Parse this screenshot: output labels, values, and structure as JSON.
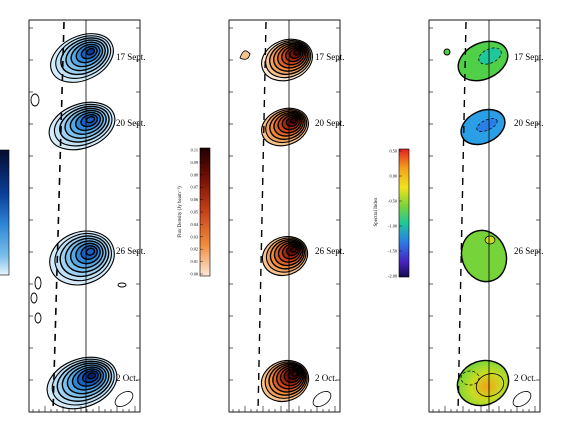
{
  "panels": [
    {
      "id": "blue",
      "colorbar": {
        "title": "",
        "ticks": []
      },
      "epochs": [
        "17 Sept.",
        "20 Sept.",
        "26 Sept.",
        "2 Oct."
      ]
    },
    {
      "id": "flux",
      "colorbar": {
        "title": "Flux Density (Jy beam⁻¹)",
        "ticks": [
          "0.11",
          "0.09",
          "0.08",
          "0.07",
          "0.06",
          "0.05",
          "0.04",
          "0.03",
          "0.02",
          "0.01",
          "0.00"
        ]
      },
      "epochs": [
        "17 Sept.",
        "20 Sept.",
        "26 Sept.",
        "2 Oct."
      ]
    },
    {
      "id": "spectral",
      "colorbar": {
        "title": "Spectral Index",
        "ticks": [
          "0.50",
          "0.00",
          "-0.50",
          "-1.00",
          "-1.50",
          "-2.00"
        ]
      },
      "epochs": [
        "17 Sept.",
        "20 Sept.",
        "26 Sept.",
        "2 Oct."
      ]
    }
  ],
  "colors": {
    "blue_scale": [
      "#ffffff",
      "#bfe2f7",
      "#7cc0ec",
      "#2f86d6",
      "#0b3e9a",
      "#050c2e"
    ],
    "flux_scale": [
      "#fde9d6",
      "#f8c48e",
      "#f08a3a",
      "#c8431a",
      "#7a1106",
      "#200000"
    ],
    "spectral_scale": [
      "#e62020",
      "#f3a21a",
      "#f2e21b",
      "#76d43a",
      "#1fc79a",
      "#2a7fe6",
      "#4824c4",
      "#180a50"
    ]
  }
}
